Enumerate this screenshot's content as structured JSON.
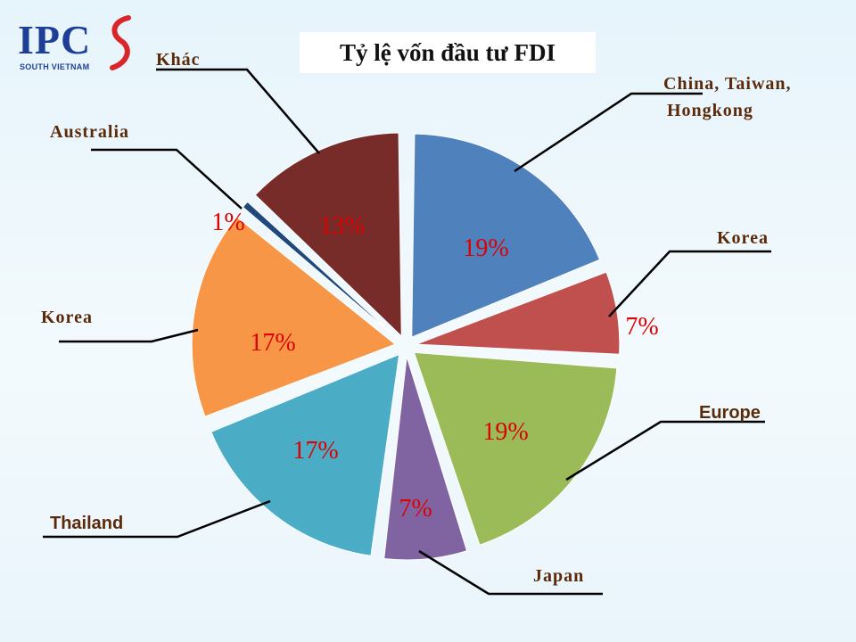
{
  "logo": {
    "text": "IPC",
    "subtitle": "SOUTH VIETNAM"
  },
  "colors": {
    "leader": "#000000",
    "label_text": "#5a2a0a",
    "percent_text": "#dd0000"
  },
  "chart_data": {
    "type": "pie",
    "title": "Tỷ lệ vốn đầu tư FDI",
    "exploded": true,
    "start": "top, clockwise",
    "slices": [
      {
        "label": [
          "China, Taiwan,",
          "Hongkong"
        ],
        "value": 19,
        "percent_label": "19%",
        "color": "#4f81bd"
      },
      {
        "label": [
          "Korea"
        ],
        "value": 7,
        "percent_label": "7%",
        "color": "#c0504d"
      },
      {
        "label": [
          "Europe"
        ],
        "value": 19,
        "percent_label": "19%",
        "color": "#9bbb59"
      },
      {
        "label": [
          "Japan"
        ],
        "value": 7,
        "percent_label": "7%",
        "color": "#8064a2"
      },
      {
        "label": [
          "Thailand"
        ],
        "value": 17,
        "percent_label": "17%",
        "color": "#4bacc6"
      },
      {
        "label": [
          "Korea"
        ],
        "value": 17,
        "percent_label": "17%",
        "color": "#f79646"
      },
      {
        "label": [
          "Australia"
        ],
        "value": 1,
        "percent_label": "1%",
        "color": "#1f497d"
      },
      {
        "label": [
          "Khác"
        ],
        "value": 13,
        "percent_label": "13%",
        "color": "#772c2a"
      }
    ]
  }
}
